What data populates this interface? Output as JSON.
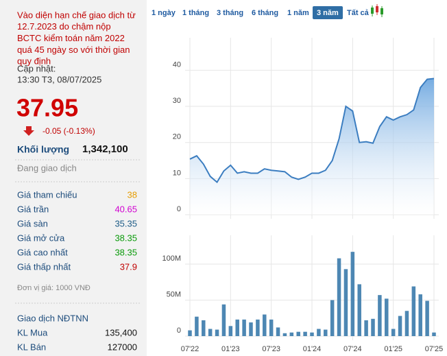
{
  "notice": [
    "Vào diện hạn chế giao dịch từ",
    "12.7.2023 do chậm nộp",
    "BCTC kiểm toán năm 2022",
    "quá 45 ngày so với thời gian",
    "quy định"
  ],
  "update_label": "Cập nhật:",
  "update_time": "13:30 T3, 08/07/2025",
  "price": "37.95",
  "change": "-0.05 (-0.13%)",
  "volume_label": "Khối lượng",
  "volume": "1,342,100",
  "status": "Đang giao dịch",
  "prices": [
    {
      "label": "Giá tham chiếu",
      "value": "38",
      "color": "#e59c00"
    },
    {
      "label": "Giá trần",
      "value": "40.65",
      "color": "#d000d0"
    },
    {
      "label": "Giá sàn",
      "value": "35.35",
      "color": "#1c5b86"
    },
    {
      "label": "Giá mở cửa",
      "value": "38.35",
      "color": "#0a9a0a"
    },
    {
      "label": "Giá cao nhất",
      "value": "38.35",
      "color": "#0a9a0a"
    },
    {
      "label": "Giá thấp nhất",
      "value": "37.9",
      "color": "#c00000"
    }
  ],
  "unit_note": "Đơn vị giá: 1000 VNĐ",
  "foreign": {
    "title": "Giao dịch NĐTNN",
    "rows": [
      {
        "label": "KL Mua",
        "value": "135,400"
      },
      {
        "label": "KL Bán",
        "value": "127000"
      }
    ]
  },
  "tabs": [
    "1 ngày",
    "1 tháng",
    "3 tháng",
    "6 tháng",
    "1 năm",
    "3 năm",
    "Tất cả"
  ],
  "active_tab": 5,
  "chart_data": [
    {
      "type": "area",
      "color": "#3b7dc0",
      "values": [
        15.4,
        16.3,
        14,
        10.6,
        9,
        12.1,
        13.7,
        11.5,
        11.9,
        11.5,
        11.5,
        12.7,
        12.3,
        12.1,
        11.9,
        10.4,
        9.8,
        10.4,
        11.5,
        11.5,
        12.3,
        15,
        21,
        30,
        28.7,
        20,
        20.2,
        19.8,
        24.4,
        27.1,
        26.2,
        27.1,
        27.7,
        29,
        35.2,
        37.5,
        37.7
      ],
      "ylim": [
        0,
        49
      ],
      "yticks": [
        0,
        10,
        20,
        30,
        40
      ],
      "grid": true
    },
    {
      "type": "bar",
      "color": "#4d87b3",
      "categories": [
        "07'22",
        null,
        null,
        null,
        null,
        null,
        "01'23",
        null,
        null,
        null,
        null,
        null,
        "07'23",
        null,
        null,
        null,
        null,
        null,
        "01'24",
        null,
        null,
        null,
        null,
        null,
        "07'24",
        null,
        null,
        null,
        null,
        null,
        "01'25",
        null,
        null,
        null,
        null,
        null,
        "07'25"
      ],
      "values": [
        8000000,
        27000000,
        22000000,
        10000000,
        9000000,
        44000000,
        14000000,
        23000000,
        23000000,
        19000000,
        23000000,
        30000000,
        23000000,
        12000000,
        4000000,
        5000000,
        6000000,
        6000000,
        5000000,
        10000000,
        9000000,
        50000000,
        108000000,
        93000000,
        117000000,
        72000000,
        22000000,
        24000000,
        57000000,
        52000000,
        10000000,
        28000000,
        35000000,
        69000000,
        58000000,
        49000000,
        5000000
      ],
      "ylim": [
        0,
        140000000
      ],
      "yticks": [
        0,
        {
          "value": 50000000,
          "label": "50M"
        },
        {
          "value": 100000000,
          "label": "100M"
        }
      ],
      "grid": true
    }
  ]
}
